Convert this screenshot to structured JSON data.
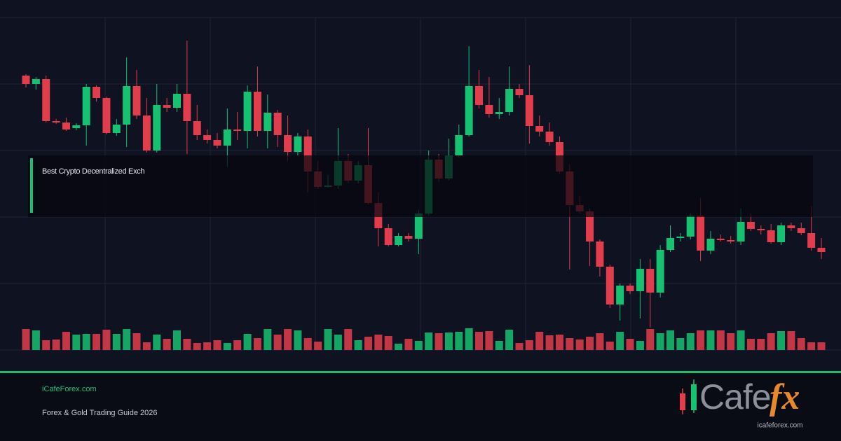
{
  "chart_data": {
    "type": "candlestick",
    "open": [
      392,
      380,
      387,
      327,
      325,
      317,
      321,
      376,
      360,
      310,
      322,
      377,
      335,
      285,
      350,
      346,
      366,
      327,
      307,
      300,
      292,
      315,
      313,
      369,
      313,
      339,
      307,
      283,
      305,
      255,
      233,
      235,
      270,
      242,
      264,
      210,
      174,
      150,
      163,
      159,
      195,
      272,
      245,
      278,
      307,
      377,
      350,
      337,
      340,
      373,
      364,
      320,
      312,
      297,
      255,
      207,
      198,
      155,
      119,
      65,
      92,
      84,
      116,
      82,
      143,
      160,
      162,
      192,
      142,
      159,
      157,
      155,
      183,
      173,
      171,
      154,
      178,
      174,
      167,
      146
    ],
    "high": [
      394,
      390,
      392,
      330,
      332,
      324,
      380,
      378,
      362,
      330,
      418,
      400,
      360,
      380,
      360,
      380,
      442,
      350,
      315,
      310,
      345,
      340,
      378,
      405,
      365,
      343,
      335,
      310,
      315,
      270,
      250,
      317,
      280,
      270,
      317,
      225,
      180,
      167,
      167,
      200,
      285,
      280,
      302,
      322,
      434,
      400,
      390,
      360,
      405,
      380,
      407,
      335,
      325,
      305,
      265,
      220,
      202,
      158,
      122,
      95,
      95,
      130,
      130,
      150,
      178,
      167,
      195,
      217,
      170,
      165,
      163,
      202,
      195,
      178,
      180,
      182,
      182,
      182,
      205,
      160
    ],
    "low": [
      375,
      372,
      325,
      323,
      313,
      314,
      292,
      355,
      308,
      306,
      290,
      330,
      282,
      282,
      340,
      340,
      280,
      300,
      295,
      288,
      262,
      300,
      288,
      305,
      288,
      290,
      270,
      278,
      225,
      230,
      232,
      230,
      238,
      238,
      208,
      148,
      148,
      148,
      155,
      137,
      192,
      240,
      242,
      275,
      305,
      345,
      332,
      330,
      335,
      360,
      295,
      305,
      292,
      252,
      115,
      195,
      120,
      105,
      60,
      42,
      80,
      45,
      32,
      75,
      140,
      155,
      158,
      127,
      137,
      155,
      152,
      150,
      170,
      165,
      152,
      150,
      170,
      164,
      142,
      130
    ],
    "close": [
      380,
      387,
      327,
      325,
      315,
      321,
      376,
      360,
      310,
      322,
      377,
      335,
      285,
      350,
      346,
      366,
      327,
      307,
      300,
      292,
      315,
      313,
      369,
      313,
      339,
      307,
      283,
      305,
      255,
      233,
      235,
      270,
      242,
      264,
      210,
      174,
      150,
      163,
      159,
      195,
      272,
      245,
      278,
      307,
      377,
      350,
      337,
      340,
      373,
      364,
      320,
      312,
      297,
      255,
      207,
      198,
      155,
      119,
      65,
      92,
      84,
      116,
      82,
      143,
      160,
      162,
      192,
      142,
      159,
      157,
      155,
      183,
      173,
      171,
      154,
      178,
      174,
      167,
      146,
      140
    ],
    "volume": [
      30,
      28,
      14,
      15,
      26,
      22,
      23,
      23,
      29,
      23,
      30,
      24,
      11,
      22,
      16,
      28,
      16,
      10,
      11,
      14,
      10,
      14,
      23,
      17,
      30,
      22,
      30,
      28,
      17,
      12,
      30,
      22,
      30,
      14,
      19,
      22,
      20,
      9,
      16,
      13,
      25,
      24,
      25,
      26,
      31,
      26,
      27,
      13,
      29,
      10,
      14,
      26,
      21,
      22,
      17,
      15,
      19,
      24,
      12,
      26,
      16,
      13,
      30,
      24,
      28,
      17,
      24,
      28,
      28,
      28,
      24,
      28,
      16,
      16,
      24,
      27,
      27,
      17,
      11,
      11
    ],
    "ylim": [
      0,
      475
    ],
    "volume_lim": [
      0,
      40
    ],
    "up_color": "#16c172",
    "down_color": "#e23d4c",
    "grid": true
  },
  "overlay_label": "Best Crypto Decentralized Exch",
  "footer": {
    "site": "iCafeForex.com",
    "tagline": "Forex & Gold Trading Guide 2026"
  },
  "logo": {
    "word": "Cafe",
    "accent": "fx",
    "url": "icafeforex.com"
  }
}
